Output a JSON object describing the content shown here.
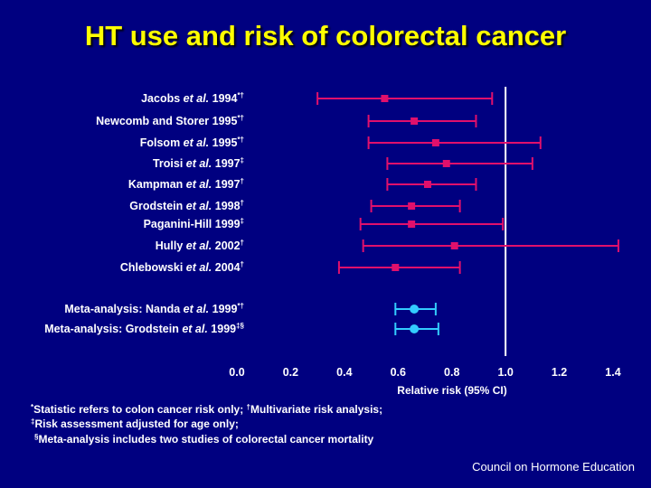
{
  "title": "HT use and risk of colorectal cancer",
  "chart_data": {
    "type": "forest",
    "x_axis": {
      "label": "Relative risk (95% CI)",
      "ticks": [
        "0.0",
        "0.2",
        "0.4",
        "0.6",
        "0.8",
        "1.0",
        "1.2",
        "1.4"
      ],
      "range": [
        0.0,
        1.4
      ],
      "reference_line": 1.0
    },
    "studies": [
      {
        "name": "Jacobs",
        "etal": " et al.",
        "year": " 1994",
        "marks": "*†",
        "estimate": 0.55,
        "lower": 0.3,
        "upper": 0.95,
        "group": "study"
      },
      {
        "name": "Newcomb and Storer",
        "etal": "",
        "year": " 1995",
        "marks": "*†",
        "estimate": 0.66,
        "lower": 0.49,
        "upper": 0.89,
        "group": "study"
      },
      {
        "name": "Folsom",
        "etal": " et al.",
        "year": " 1995",
        "marks": "*†",
        "estimate": 0.74,
        "lower": 0.49,
        "upper": 1.13,
        "group": "study"
      },
      {
        "name": "Troisi",
        "etal": " et al.",
        "year": " 1997",
        "marks": "‡",
        "estimate": 0.78,
        "lower": 0.56,
        "upper": 1.1,
        "group": "study"
      },
      {
        "name": "Kampman",
        "etal": " et al.",
        "year": " 1997",
        "marks": "†",
        "estimate": 0.71,
        "lower": 0.56,
        "upper": 0.89,
        "group": "study"
      },
      {
        "name": "Grodstein",
        "etal": " et al.",
        "year": " 1998",
        "marks": "†",
        "estimate": 0.65,
        "lower": 0.5,
        "upper": 0.83,
        "group": "study"
      },
      {
        "name": "Paganini-Hill",
        "etal": "",
        "year": " 1999",
        "marks": "‡",
        "estimate": 0.65,
        "lower": 0.46,
        "upper": 0.99,
        "group": "study"
      },
      {
        "name": "Hully",
        "etal": " et al.",
        "year": " 2002",
        "marks": "†",
        "estimate": 0.81,
        "lower": 0.47,
        "upper": 1.42,
        "group": "study"
      },
      {
        "name": "Chlebowski",
        "etal": " et al.",
        "year": " 2004",
        "marks": "†",
        "estimate": 0.59,
        "lower": 0.38,
        "upper": 0.83,
        "group": "study"
      },
      {
        "name": "Meta-analysis: Nanda",
        "etal": " et al.",
        "year": " 1999",
        "marks": "*†",
        "estimate": 0.66,
        "lower": 0.59,
        "upper": 0.74,
        "group": "meta"
      },
      {
        "name": "Meta-analysis: Grodstein",
        "etal": " et al.",
        "year": " 1999",
        "marks": "‡§",
        "estimate": 0.66,
        "lower": 0.59,
        "upper": 0.75,
        "group": "meta"
      }
    ],
    "colors": {
      "study": "#e0106c",
      "meta": "#33ccff",
      "reference": "#ffffff"
    }
  },
  "footnotes": [
    {
      "mark": "*",
      "text": "Statistic refers to colon cancer risk only; ",
      "mark2": "†",
      "text2": "Multivariate risk analysis;"
    },
    {
      "mark": "‡",
      "text": "Risk assessment adjusted for age only;",
      "mark2": "",
      "text2": ""
    },
    {
      "mark": "§",
      "text": "Meta-analysis includes two studies of colorectal cancer mortality",
      "mark2": "",
      "text2": ""
    }
  ],
  "credit": "Council on Hormone Education"
}
